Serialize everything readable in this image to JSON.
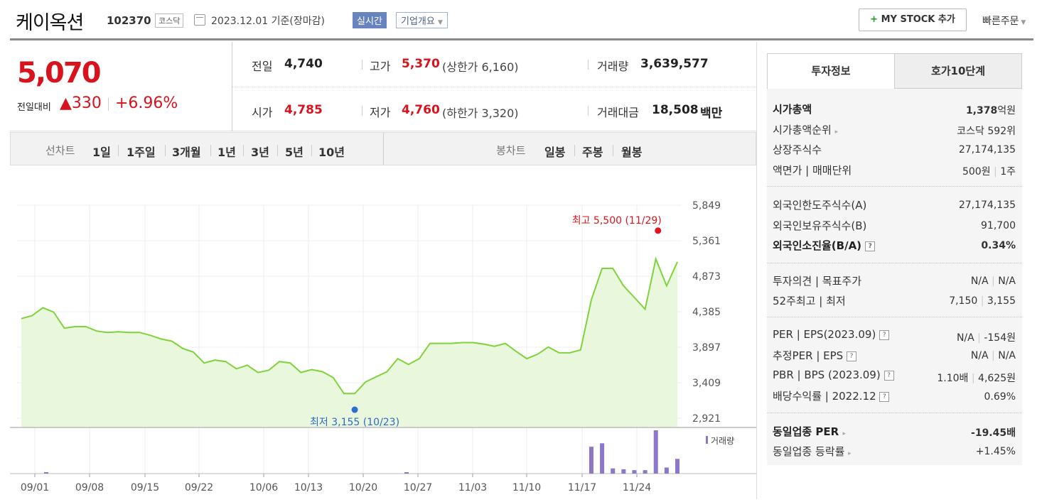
{
  "header": {
    "stock_name": "케이옥션",
    "stock_code": "102370",
    "market": "코스닥",
    "date_text": "2023.12.01  기준(장마감)",
    "realtime_label": "실시간",
    "company_overview_label": "기업개요",
    "my_stock_label": "MY STOCK 추가",
    "my_stock_plus": "+",
    "quick_order_label": "빠른주문"
  },
  "price": {
    "current": "5,070",
    "change_label": "전일대비",
    "change_arrow": "▲",
    "change": "330",
    "change_pct": "+6.96%"
  },
  "stats": {
    "prev_label": "전일",
    "prev_value": "4,740",
    "high_label": "고가",
    "high_value": "5,370",
    "upper_limit": "(상한가 6,160)",
    "volume_label": "거래량",
    "volume_value": "3,639,577",
    "open_label": "시가",
    "open_value": "4,785",
    "low_label": "저가",
    "low_value": "4,760",
    "lower_limit": "(하한가 3,320)",
    "amount_label": "거래대금",
    "amount_value": "18,508",
    "amount_unit": "백만"
  },
  "period_bar": {
    "line_label": "선차트",
    "periods": [
      "1일",
      "1주일",
      "3개월",
      "1년",
      "3년",
      "5년",
      "10년"
    ],
    "selected_period": "3개월",
    "candle_label": "봉차트",
    "candles": [
      "일봉",
      "주봉",
      "월봉"
    ]
  },
  "right_panel": {
    "tabs": [
      "투자정보",
      "호가10단계"
    ],
    "active_tab": "투자정보",
    "market_cap_label": "시가총액",
    "market_cap_value": "1,378",
    "market_cap_unit": "억원",
    "rank_label": "시가총액순위",
    "rank_value": "코스닥 592위",
    "shares_label": "상장주식수",
    "shares_value": "27,174,135",
    "par_label": "액면가 | 매매단위",
    "par_value": "500원",
    "trade_unit": "1주",
    "foreign_limit_label": "외국인한도주식수(A)",
    "foreign_limit_value": "27,174,135",
    "foreign_hold_label": "외국인보유주식수(B)",
    "foreign_hold_value": "91,700",
    "foreign_ratio_label": "외국인소진율(B/A)",
    "foreign_ratio_value": "0.34%",
    "opinion_label": "투자의견 | 목표주가",
    "opinion_value": "N/A",
    "target_value": "N/A",
    "w52_label": "52주최고 | 최저",
    "w52_high": "7,150",
    "w52_low": "3,155",
    "per_label": "PER | EPS(2023.09)",
    "per_value": "N/A",
    "eps_value": "-154원",
    "est_per_label": "추정PER | EPS",
    "est_per_value": "N/A",
    "est_eps_value": "N/A",
    "pbr_label": "PBR | BPS (2023.09)",
    "pbr_value": "1.10배",
    "bps_value": "4,625원",
    "div_label": "배당수익률 | 2022.12",
    "div_value": "0.69%",
    "sector_per_label": "동일업종 PER",
    "sector_per_value": "-19.45배",
    "sector_chg_label": "동일업종 등락률",
    "sector_chg_value": "+1.45%"
  },
  "chart_data": {
    "type": "area",
    "title": "",
    "xlabel": "",
    "ylabel": "",
    "x_tick_labels": [
      "09/01",
      "09/08",
      "09/15",
      "09/22",
      "10/06",
      "10/13",
      "10/20",
      "10/27",
      "11/03",
      "11/10",
      "11/17",
      "11/24"
    ],
    "y_tick_labels": [
      "5,849",
      "5,361",
      "4,873",
      "4,385",
      "3,897",
      "3,409",
      "2,921"
    ],
    "ylim": [
      2921,
      5849
    ],
    "grid": true,
    "volume_legend": "거래량",
    "max_annotation": "최고 5,500 (11/29)",
    "min_annotation": "최저 3,155 (10/23)",
    "max_point": {
      "date": "11/29",
      "value": 5500
    },
    "min_point": {
      "date": "10/23",
      "value": 3155
    },
    "line_color": "#7ed33a",
    "fill_color": "#e9f8dc",
    "volume_color": "#8c77c9",
    "series": [
      {
        "values": [
          4290,
          4330,
          4440,
          4380,
          4160,
          4180,
          4180,
          4120,
          4100,
          4110,
          4100,
          4100,
          4060,
          4010,
          3980,
          3880,
          3830,
          3680,
          3720,
          3700,
          3600,
          3650,
          3550,
          3580,
          3700,
          3680,
          3550,
          3590,
          3560,
          3480,
          3260,
          3260,
          3420,
          3490,
          3560,
          3740,
          3660,
          3740,
          3950,
          3950,
          3950,
          3960,
          3960,
          3940,
          3910,
          3950,
          3840,
          3740,
          3800,
          3900,
          3820,
          3820,
          3860,
          4550,
          4980,
          4980,
          4740,
          4580,
          4420,
          5110,
          4740,
          5070
        ]
      }
    ],
    "volume": [
      0,
      0,
      0,
      0,
      0,
      0,
      0,
      0,
      0,
      0,
      0,
      0,
      0,
      0,
      0,
      0,
      0,
      0,
      0,
      0,
      0,
      0,
      0,
      0,
      0,
      0,
      0,
      0,
      0,
      0,
      0,
      0,
      0,
      0,
      0,
      0,
      0,
      0,
      0,
      0,
      0,
      0,
      0,
      0,
      0,
      0,
      0,
      0,
      0,
      0,
      0,
      0,
      0,
      0.62,
      0.7,
      0.12,
      0.1,
      0.08,
      0.08,
      1.0,
      0.14,
      0.34
    ]
  }
}
